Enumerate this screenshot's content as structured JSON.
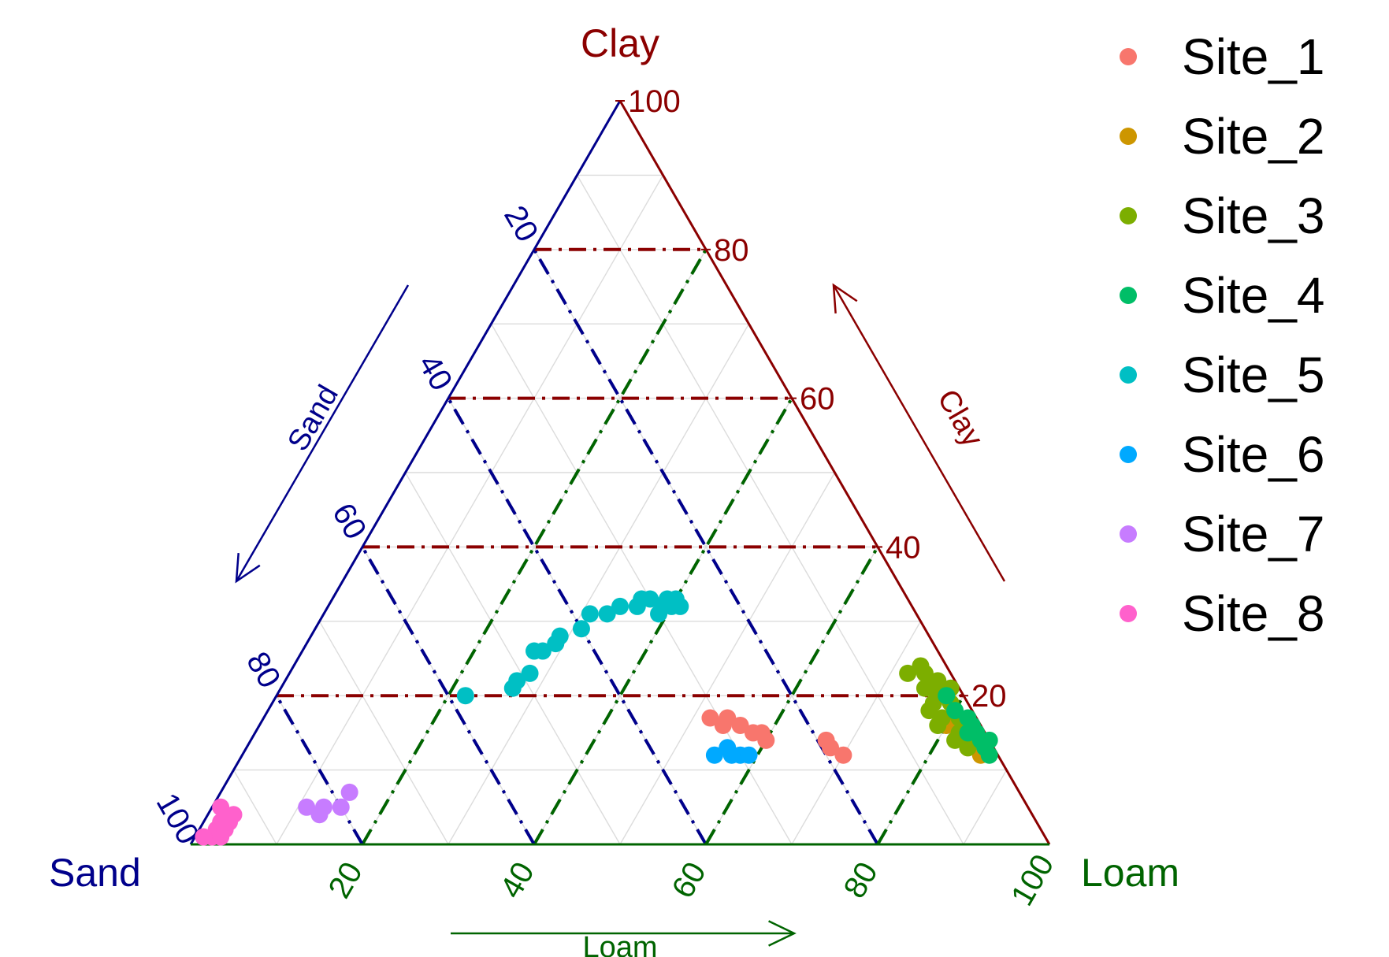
{
  "chart_data": {
    "type": "scatter",
    "subtype": "ternary",
    "axes": {
      "clay": {
        "name": "Clay",
        "color": "#8B0000",
        "ticks": [
          20,
          40,
          60,
          80,
          100
        ]
      },
      "sand": {
        "name": "Sand",
        "color": "#00008B",
        "ticks": [
          20,
          40,
          60,
          80,
          100
        ]
      },
      "loam": {
        "name": "Loam",
        "color": "#006400",
        "ticks": [
          20,
          40,
          60,
          80,
          100
        ]
      }
    },
    "grid": true,
    "legend_position": "top-right",
    "series": [
      {
        "name": "Site_1",
        "color": "#F8766D",
        "points": [
          [
            17,
            29,
            54
          ],
          [
            16,
            28,
            56
          ],
          [
            15,
            27,
            58
          ],
          [
            14,
            26,
            60
          ],
          [
            16,
            30,
            54
          ],
          [
            17,
            31,
            52
          ],
          [
            15,
            26,
            59
          ],
          [
            13,
            19,
            68
          ],
          [
            14,
            19,
            67
          ],
          [
            12,
            18,
            70
          ]
        ]
      },
      {
        "name": "Site_2",
        "color": "#CD9600",
        "points": [
          [
            15,
            3,
            82
          ],
          [
            14,
            3,
            83
          ],
          [
            13,
            2,
            85
          ],
          [
            14,
            2,
            84
          ],
          [
            16,
            4,
            80
          ],
          [
            15,
            2,
            83
          ],
          [
            13,
            3,
            84
          ],
          [
            12,
            2,
            86
          ]
        ]
      },
      {
        "name": "Site_3",
        "color": "#7CAE00",
        "points": [
          [
            23,
            5,
            72
          ],
          [
            22,
            2,
            76
          ],
          [
            23,
            3,
            74
          ],
          [
            21,
            4,
            75
          ],
          [
            20,
            3,
            77
          ],
          [
            19,
            4,
            77
          ],
          [
            18,
            5,
            77
          ],
          [
            17,
            4,
            79
          ],
          [
            16,
            5,
            79
          ],
          [
            15,
            3,
            82
          ],
          [
            14,
            4,
            82
          ],
          [
            13,
            3,
            84
          ],
          [
            21,
            1,
            78
          ],
          [
            19,
            2,
            79
          ],
          [
            24,
            3,
            73
          ],
          [
            17,
            2,
            81
          ]
        ]
      },
      {
        "name": "Site_4",
        "color": "#00BE67",
        "points": [
          [
            20,
            2,
            78
          ],
          [
            18,
            2,
            80
          ],
          [
            17,
            1,
            82
          ],
          [
            16,
            1,
            83
          ],
          [
            15,
            1,
            84
          ],
          [
            14,
            1,
            85
          ],
          [
            13,
            1,
            86
          ],
          [
            14,
            0,
            86
          ],
          [
            12,
            1,
            87
          ],
          [
            15,
            2,
            83
          ]
        ]
      },
      {
        "name": "Site_5",
        "color": "#00BFC4",
        "points": [
          [
            20,
            58,
            22
          ],
          [
            21,
            52,
            27
          ],
          [
            22,
            51,
            27
          ],
          [
            23,
            49,
            28
          ],
          [
            26,
            47,
            27
          ],
          [
            26,
            46,
            28
          ],
          [
            27,
            44,
            29
          ],
          [
            28,
            43,
            29
          ],
          [
            29,
            40,
            31
          ],
          [
            31,
            38,
            31
          ],
          [
            31,
            36,
            33
          ],
          [
            32,
            34,
            34
          ],
          [
            32,
            32,
            36
          ],
          [
            33,
            31,
            36
          ],
          [
            32,
            29,
            39
          ],
          [
            33,
            30,
            37
          ],
          [
            32,
            28,
            40
          ],
          [
            33,
            28,
            39
          ],
          [
            31,
            30,
            39
          ],
          [
            33,
            27,
            40
          ],
          [
            32,
            27,
            41
          ]
        ]
      },
      {
        "name": "Site_6",
        "color": "#00A9FF",
        "points": [
          [
            12,
            33,
            55
          ],
          [
            12,
            31,
            57
          ],
          [
            13,
            31,
            56
          ],
          [
            12,
            30,
            58
          ],
          [
            12,
            29,
            59
          ]
        ]
      },
      {
        "name": "Site_7",
        "color": "#C77CFF",
        "points": [
          [
            5,
            84,
            11
          ],
          [
            5,
            82,
            13
          ],
          [
            4,
            83,
            13
          ],
          [
            5,
            80,
            15
          ],
          [
            7,
            78,
            15
          ]
        ]
      },
      {
        "name": "Site_8",
        "color": "#FF61CC",
        "points": [
          [
            5,
            94,
            1
          ],
          [
            3,
            95,
            2
          ],
          [
            2,
            96,
            2
          ],
          [
            1,
            97,
            2
          ],
          [
            1,
            96,
            3
          ],
          [
            2,
            95,
            3
          ],
          [
            4,
            93,
            3
          ],
          [
            1,
            98,
            1
          ],
          [
            3,
            94,
            3
          ]
        ]
      }
    ]
  }
}
